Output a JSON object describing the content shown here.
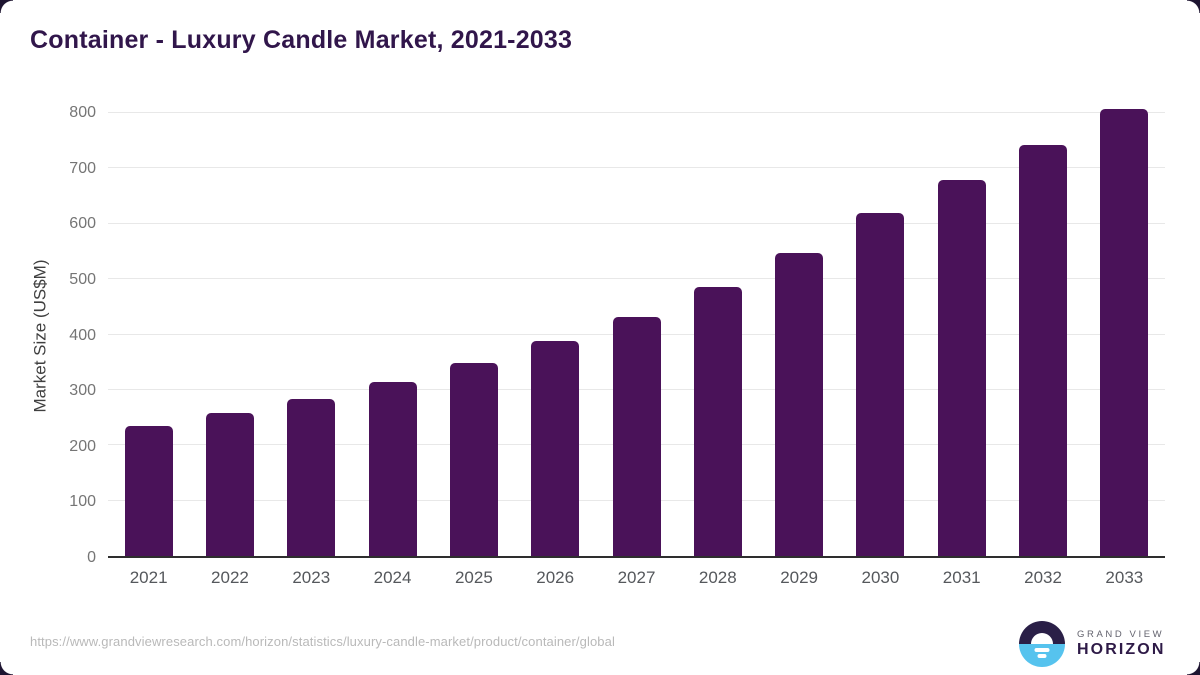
{
  "page": {
    "title": "Container - Luxury Candle Market, 2021-2033"
  },
  "chart_data": {
    "type": "bar",
    "title": "Container - Luxury Candle Market, 2021-2033",
    "categories": [
      "2021",
      "2022",
      "2023",
      "2024",
      "2025",
      "2026",
      "2027",
      "2028",
      "2029",
      "2030",
      "2031",
      "2032",
      "2033"
    ],
    "values": [
      234,
      258,
      284,
      314,
      348,
      388,
      432,
      486,
      548,
      620,
      679,
      742,
      808
    ],
    "xlabel": "",
    "ylabel": "Market Size (US$M)",
    "ylim": [
      0,
      800
    ],
    "yticks": [
      0,
      100,
      200,
      300,
      400,
      500,
      600,
      700,
      800
    ],
    "grid": "horizontal",
    "legend": "none",
    "bar_color": "#4a1259"
  },
  "footer": {
    "source_url": "https://www.grandviewresearch.com/horizon/statistics/luxury-candle-market/product/container/global",
    "logo": {
      "line1": "GRAND VIEW",
      "line2": "HORIZON"
    }
  },
  "colors": {
    "bar": "#4a1259",
    "title": "#31164b",
    "gridline": "#e8e8e8",
    "axis_line": "#2e2e2e",
    "tick_label": "#757575",
    "x_label": "#55585c",
    "url_text": "#b9b9b9",
    "logo_navy": "#2a1f47",
    "logo_blue": "#56c3ee",
    "corner": "#1d1430"
  }
}
